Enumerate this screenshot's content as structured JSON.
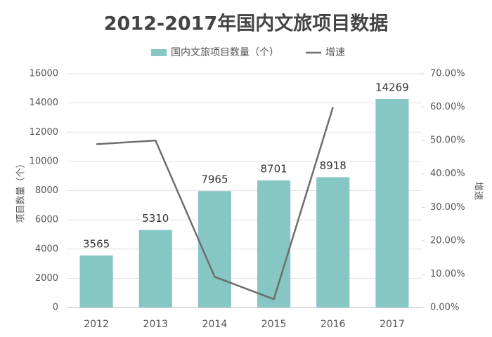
{
  "chart_data": {
    "type": "bar+line",
    "title": "2012-2017年国内文旅项目数据",
    "categories": [
      "2012",
      "2013",
      "2014",
      "2015",
      "2016",
      "2017"
    ],
    "series": [
      {
        "name": "国内文旅项目数量（个）",
        "color": "#86c6c5",
        "type": "bar",
        "values": [
          3565,
          5310,
          7965,
          8701,
          8918,
          14269
        ]
      },
      {
        "name": "增速",
        "color": "#6e6e6e",
        "type": "line",
        "axis": "y2",
        "values": [
          48.9,
          50,
          9.2,
          2.5,
          60,
          null
        ]
      }
    ],
    "ylabel": "项目数量（个）",
    "y2label": "增速",
    "ylim": [
      0,
      16000
    ],
    "yticks": [
      0,
      2000,
      4000,
      6000,
      8000,
      10000,
      12000,
      14000,
      16000
    ],
    "y2lim": [
      0,
      70
    ],
    "y2ticks": [
      {
        "value": 0,
        "label": "0.00%"
      },
      {
        "value": 10,
        "label": "10.00%"
      },
      {
        "value": 20,
        "label": "20.00%"
      },
      {
        "value": 30,
        "label": "30.00%"
      },
      {
        "value": 40,
        "label": "40.00%"
      },
      {
        "value": 50,
        "label": "50.00%"
      },
      {
        "value": 60,
        "label": "60.00%"
      },
      {
        "value": 70,
        "label": "70.00%"
      }
    ],
    "grid": true,
    "legend": "top"
  }
}
